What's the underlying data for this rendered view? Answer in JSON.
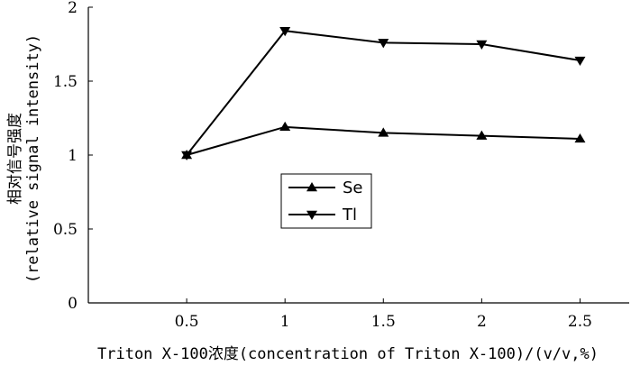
{
  "chart_data": {
    "type": "line",
    "x": [
      0.5,
      1,
      1.5,
      2,
      2.5
    ],
    "x_tick_labels": [
      "0.5",
      "1",
      "1.5",
      "2",
      "2.5"
    ],
    "y_tick_labels": [
      "0",
      "0.5",
      "1",
      "1.5",
      "2"
    ],
    "xlim": [
      0,
      2.75
    ],
    "ylim": [
      0,
      2
    ],
    "xlabel": "Triton X-100浓度(concentration of Triton X-100)/(v/v,%)",
    "ylabel_line1": "相对信号强度",
    "ylabel_line2": "(relative signal intensity)",
    "legend_position": "center",
    "series": [
      {
        "name": "Se",
        "marker": "triangle-up",
        "values": [
          1.0,
          1.19,
          1.15,
          1.13,
          1.11
        ]
      },
      {
        "name": "Tl",
        "marker": "triangle-down",
        "values": [
          1.0,
          1.84,
          1.76,
          1.75,
          1.64
        ]
      }
    ]
  }
}
